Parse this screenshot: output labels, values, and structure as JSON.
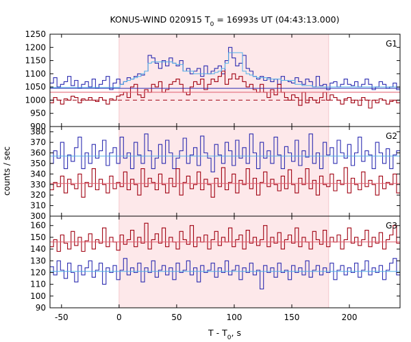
{
  "chart_data": {
    "type": "line",
    "title_main": "KONUS-WIND 020915 T",
    "title_sub": "0",
    "title_rest": " = 16993s UT (04:43:13.000)",
    "ylabel": "counts / sec",
    "xlabel_main": "T - T",
    "xlabel_sub": "0",
    "xlabel_rest": ", s",
    "xlim": [
      -60,
      244
    ],
    "xticks": [
      -50,
      0,
      50,
      100,
      150,
      200
    ],
    "highlight_interval": [
      0,
      182
    ],
    "colors": {
      "blue": "#2b2bb0",
      "red": "#a00010",
      "bg_blue": "#4fb0e8",
      "bg_red": "#e05a6a",
      "shade": "#fde8ea"
    },
    "panels": [
      {
        "name": "G1",
        "ylim": [
          900,
          1250
        ],
        "yticks": [
          900,
          950,
          1000,
          1050,
          1100,
          1150,
          1200,
          1250
        ],
        "series": [
          {
            "color": "blue",
            "values": [
              1065,
              1085,
              1050,
              1060,
              1070,
              1090,
              1055,
              1075,
              1045,
              1060,
              1070,
              1050,
              1080,
              1045,
              1060,
              1075,
              1090,
              1040,
              1065,
              1080,
              1060,
              1070,
              1085,
              1080,
              1090,
              1100,
              1095,
              1110,
              1170,
              1160,
              1140,
              1120,
              1150,
              1130,
              1160,
              1140,
              1130,
              1150,
              1110,
              1120,
              1100,
              1110,
              1120,
              1090,
              1130,
              1100,
              1110,
              1120,
              1130,
              1100,
              1150,
              1200,
              1160,
              1130,
              1140,
              1170,
              1120,
              1110,
              1090,
              1080,
              1090,
              1075,
              1085,
              1070,
              1080,
              1060,
              1090,
              1075,
              1070,
              1065,
              1085,
              1070,
              1060,
              1080,
              1070,
              1050,
              1090,
              1055,
              1060,
              1040,
              1065,
              1070,
              1050,
              1060,
              1080,
              1060,
              1055,
              1070,
              1050,
              1060,
              1080,
              1060,
              1040,
              1050,
              1070,
              1060,
              1045,
              1050,
              1065,
              1040
            ]
          },
          {
            "color": "red",
            "values": [
              990,
              1010,
              1000,
              985,
              1005,
              1000,
              1015,
              1010,
              990,
              1005,
              1000,
              1010,
              1000,
              995,
              1010,
              1000,
              985,
              1005,
              1000,
              1015,
              1020,
              1030,
              1010,
              1050,
              1060,
              1020,
              1010,
              1040,
              1030,
              1060,
              1050,
              1070,
              1030,
              1040,
              1060,
              1070,
              1080,
              1060,
              1030,
              1020,
              1050,
              1070,
              1060,
              1080,
              1040,
              1060,
              1080,
              1070,
              1090,
              1110,
              1060,
              1080,
              1100,
              1080,
              1090,
              1070,
              1050,
              1060,
              1040,
              1030,
              1060,
              1030,
              1010,
              1040,
              1020,
              1060,
              1030,
              1010,
              1000,
              1020,
              1010,
              980,
              1030,
              990,
              1010,
              1000,
              990,
              1010,
              1030,
              1000,
              1020,
              1010,
              1000,
              985,
              1005,
              1010,
              990,
              1000,
              980,
              1010,
              1000,
              970,
              1000,
              990,
              1005,
              1000,
              985,
              995,
              1000,
              990
            ]
          },
          {
            "color": "bg_blue",
            "kind": "background",
            "values": [
              1048,
              1048,
              1048,
              1048,
              1048,
              1048,
              1048,
              1048,
              1048,
              1048,
              1048,
              1048,
              1048,
              1048,
              1048,
              1048,
              1048,
              1048,
              1048,
              1048,
              1060,
              1070,
              1075,
              1080,
              1085,
              1090,
              1100,
              1110,
              1140,
              1145,
              1145,
              1145,
              1145,
              1145,
              1145,
              1140,
              1135,
              1135,
              1110,
              1110,
              1110,
              1100,
              1100,
              1100,
              1100,
              1100,
              1100,
              1105,
              1110,
              1120,
              1140,
              1180,
              1180,
              1180,
              1180,
              1110,
              1100,
              1095,
              1090,
              1085,
              1085,
              1085,
              1080,
              1080,
              1080,
              1080,
              1075,
              1075,
              1075,
              1075,
              1060,
              1060,
              1055,
              1055,
              1055,
              1050,
              1050,
              1050,
              1050,
              1050,
              1050,
              1050,
              1050,
              1050,
              1050,
              1050,
              1050,
              1050,
              1050,
              1050,
              1050,
              1050,
              1050,
              1050,
              1050,
              1050,
              1050,
              1050,
              1050,
              1050
            ]
          },
          {
            "color": "blue",
            "kind": "fit",
            "values": [
              1045,
              1045
            ]
          },
          {
            "color": "bg_red",
            "kind": "fit",
            "values": [
              1030,
              1030
            ]
          },
          {
            "color": "red",
            "kind": "dashed",
            "values": [
              1000,
              1000
            ]
          }
        ]
      },
      {
        "name": "G2",
        "ylim": [
          300,
          385
        ],
        "yticks": [
          300,
          310,
          320,
          330,
          340,
          350,
          360,
          370,
          380
        ],
        "series": [
          {
            "color": "blue",
            "values": [
              350,
              362,
              355,
              370,
              345,
              358,
              352,
              365,
              375,
              345,
              360,
              350,
              368,
              355,
              362,
              372,
              348,
              360,
              365,
              350,
              375,
              355,
              360,
              345,
              370,
              358,
              350,
              378,
              362,
              345,
              355,
              368,
              350,
              372,
              360,
              345,
              355,
              362,
              374,
              350,
              358,
              365,
              348,
              376,
              360,
              355,
              342,
              368,
              358,
              350,
              370,
              362,
              348,
              372,
              355,
              365,
              350,
              378,
              360,
              345,
              370,
              355,
              362,
              350,
              375,
              358,
              345,
              366,
              360,
              352,
              372,
              348,
              362,
              356,
              378,
              350,
              360,
              345,
              370,
              358,
              365,
              350,
              372,
              360,
              355,
              368,
              348,
              360,
              375,
              352,
              362,
              358,
              345,
              370,
              360,
              350,
              364,
              345,
              358,
              362
            ]
          },
          {
            "color": "red",
            "values": [
              325,
              332,
              328,
              338,
              322,
              335,
              330,
              326,
              340,
              318,
              332,
              328,
              345,
              325,
              335,
              330,
              322,
              338,
              326,
              332,
              328,
              342,
              325,
              335,
              330,
              320,
              345,
              328,
              336,
              332,
              325,
              340,
              330,
              322,
              336,
              328,
              345,
              320,
              332,
              338,
              326,
              330,
              342,
              325,
              335,
              330,
              318,
              336,
              328,
              346,
              325,
              332,
              340,
              322,
              334,
              330,
              345,
              326,
              336,
              320,
              332,
              342,
              328,
              335,
              330,
              324,
              338,
              326,
              344,
              330,
              322,
              336,
              330,
              345,
              326,
              334,
              320,
              338,
              330,
              328,
              340,
              324,
              334,
              330,
              346,
              322,
              336,
              330,
              325,
              342,
              328,
              334,
              330,
              320,
              338,
              326,
              332,
              330,
              340,
              322
            ]
          },
          {
            "color": "bg_blue",
            "kind": "fit",
            "values": [
              357,
              357
            ]
          },
          {
            "color": "bg_red",
            "kind": "fit",
            "values": [
              331,
              331
            ]
          }
        ]
      },
      {
        "name": "G3",
        "ylim": [
          90,
          168
        ],
        "yticks": [
          90,
          100,
          110,
          120,
          130,
          140,
          150,
          160
        ],
        "series": [
          {
            "color": "red",
            "values": [
              142,
              148,
              138,
              152,
              145,
              140,
              155,
              143,
              150,
              138,
              147,
              153,
              140,
              148,
              145,
              158,
              142,
              150,
              146,
              139,
              152,
              144,
              148,
              156,
              142,
              150,
              145,
              162,
              140,
              148,
              153,
              145,
              158,
              142,
              150,
              146,
              140,
              155,
              148,
              144,
              160,
              142,
              150,
              146,
              152,
              140,
              148,
              155,
              143,
              150,
              146,
              158,
              142,
              148,
              152,
              140,
              156,
              145,
              150,
              143,
              148,
              160,
              142,
              150,
              145,
              154,
              140,
              148,
              152,
              145,
              158,
              142,
              150,
              146,
              140,
              155,
              148,
              144,
              156,
              142,
              150,
              146,
              152,
              140,
              148,
              158,
              145,
              150,
              143,
              148,
              156,
              142,
              150,
              145,
              154,
              140,
              148,
              152,
              160,
              145
            ]
          },
          {
            "color": "blue",
            "values": [
              125,
              118,
              130,
              122,
              115,
              128,
              120,
              112,
              126,
              118,
              124,
              130,
              116,
              122,
              128,
              110,
              124,
              120,
              126,
              114,
              122,
              132,
              118,
              124,
              120,
              128,
              112,
              124,
              120,
              130,
              116,
              122,
              126,
              118,
              124,
              114,
              128,
              120,
              122,
              130,
              118,
              124,
              112,
              126,
              120,
              122,
              128,
              116,
              124,
              120,
              130,
              118,
              122,
              126,
              114,
              124,
              120,
              128,
              118,
              122,
              106,
              126,
              120,
              124,
              116,
              128,
              120,
              122,
              114,
              126,
              120,
              124,
              118,
              130,
              116,
              122,
              126,
              118,
              124,
              120,
              128,
              114,
              122,
              126,
              118,
              124,
              120,
              128,
              116,
              122,
              130,
              118,
              124,
              120,
              126,
              114,
              122,
              128,
              132,
              118
            ]
          },
          {
            "color": "bg_red",
            "kind": "fit",
            "values": [
              146,
              146
            ]
          },
          {
            "color": "bg_blue",
            "kind": "fit",
            "values": [
              121,
              121
            ]
          }
        ]
      }
    ]
  }
}
